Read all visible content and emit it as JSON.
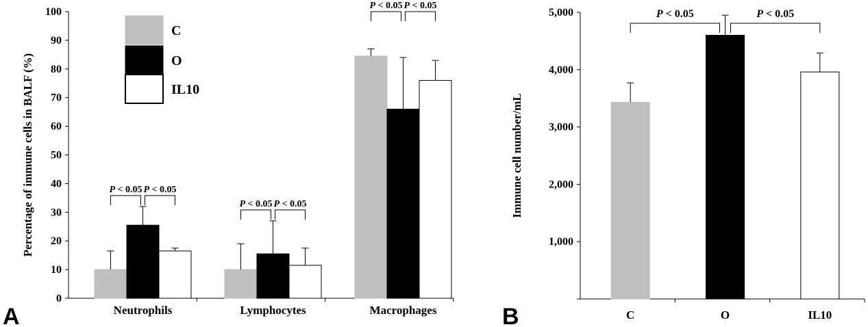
{
  "colors": {
    "C": "#bfbfbf",
    "O": "#000000",
    "IL10": "#ffffff"
  },
  "chart_data": [
    {
      "panel": "A",
      "type": "bar",
      "ylabel": "Percentage of immune cells in BALF (%)",
      "categories": [
        "Neutrophils",
        "Lymphocytes",
        "Macrophages"
      ],
      "ylim": [
        0,
        100
      ],
      "yticks": [
        "0",
        "10",
        "20",
        "30",
        "40",
        "50",
        "60",
        "70",
        "80",
        "90",
        "100"
      ],
      "legend_position": "top-left",
      "series": [
        {
          "name": "C",
          "values": [
            10,
            10,
            84.5
          ],
          "errors": [
            6.5,
            9,
            2.5
          ]
        },
        {
          "name": "O",
          "values": [
            25.5,
            15.5,
            66
          ],
          "errors": [
            6.5,
            11.5,
            18
          ]
        },
        {
          "name": "IL10",
          "values": [
            16.5,
            11.5,
            76
          ],
          "errors": [
            1,
            6,
            7
          ]
        }
      ],
      "significance": [
        {
          "category": "Neutrophils",
          "pairs": [
            "P < 0.05",
            "P < 0.05"
          ]
        },
        {
          "category": "Lymphocytes",
          "pairs": [
            "P < 0.05",
            "P < 0.05"
          ]
        },
        {
          "category": "Macrophages",
          "pairs": [
            "P < 0.05",
            "P < 0.05"
          ]
        }
      ]
    },
    {
      "panel": "B",
      "type": "bar",
      "ylabel": "Immune cell number/mL",
      "categories": [
        "C",
        "O",
        "IL10"
      ],
      "ylim": [
        0,
        5000
      ],
      "yticks": [
        "",
        "1,000",
        "2,000",
        "3,000",
        "4,000",
        "5,000"
      ],
      "values": [
        3430,
        4600,
        3960
      ],
      "errors": [
        340,
        350,
        330
      ],
      "significance": [
        "P < 0.05",
        "P < 0.05"
      ]
    }
  ]
}
